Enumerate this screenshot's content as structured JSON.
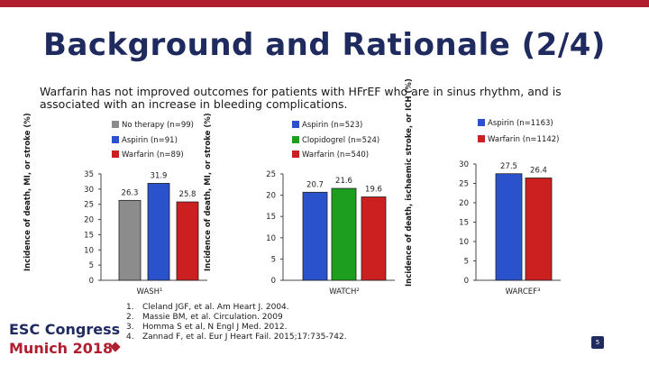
{
  "slide": {
    "title": "Background and Rationale (2/4)",
    "subtitle": "Warfarin has not improved outcomes for patients with HFrEF who are in sinus rhythm, and is associated with an increase in bleeding complications.",
    "page_number": "5",
    "logo_line1": "ESC Congress",
    "logo_line2": "Munich 2018"
  },
  "references": [
    {
      "num": "1.",
      "text": "Cleland JGF, et al. Am Heart J. 2004."
    },
    {
      "num": "2.",
      "text": "Massie BM, et al. Circulation. 2009"
    },
    {
      "num": "3.",
      "text": "Homma S et al, N Engl J Med. 2012."
    },
    {
      "num": "4.",
      "text": "Zannad F, et al. Eur J Heart Fail. 2015;17:735-742."
    }
  ],
  "chart_data": [
    {
      "type": "bar",
      "xlabel": "WASH¹",
      "ylabel": "Incidence of death, MI, or stroke (%)",
      "ylim": [
        0,
        35
      ],
      "yticks": [
        0,
        5,
        10,
        15,
        20,
        25,
        30,
        35
      ],
      "categories": [
        "No therapy (n=99)",
        "Aspirin (n=91)",
        "Warfarin (n=89)"
      ],
      "values": [
        26.3,
        31.9,
        25.8
      ],
      "colors": [
        "#8c8c8c",
        "#2952cc",
        "#cc2020"
      ],
      "legend": "top"
    },
    {
      "type": "bar",
      "xlabel": "WATCH²",
      "ylabel": "Incidence of death, MI, or stroke (%)",
      "ylim": [
        0,
        25
      ],
      "yticks": [
        0,
        5,
        10,
        15,
        20,
        25
      ],
      "categories": [
        "Aspirin (n=523)",
        "Clopidogrel (n=524)",
        "Warfarin (n=540)"
      ],
      "values": [
        20.7,
        21.6,
        19.6
      ],
      "colors": [
        "#2952cc",
        "#1e9e1e",
        "#cc2020"
      ],
      "legend": "top"
    },
    {
      "type": "bar",
      "xlabel": "WARCEF³",
      "ylabel": "Incidence of death, ischaemic stroke, or ICH (%)",
      "ylim": [
        0,
        30
      ],
      "yticks": [
        0,
        5,
        10,
        15,
        20,
        25,
        30
      ],
      "categories": [
        "Aspirin (n=1163)",
        "Warfarin (n=1142)"
      ],
      "values": [
        27.5,
        26.4
      ],
      "colors": [
        "#2952cc",
        "#cc2020"
      ],
      "legend": "top"
    }
  ],
  "colors": {
    "title": "#1f2a5e",
    "accent_red": "#b01e2f"
  }
}
